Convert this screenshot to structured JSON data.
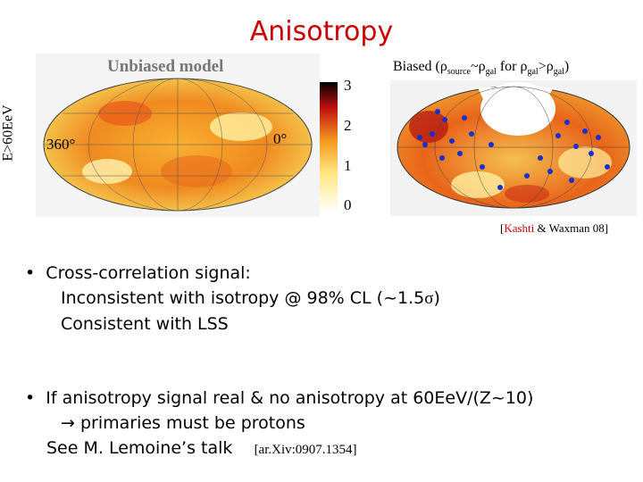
{
  "title": "Anisotropy",
  "left_panel": {
    "title": "Unbiased model",
    "ylabel": "E>60EeV",
    "lon_left": "360°",
    "lon_right": "0°"
  },
  "colorbar": {
    "ticks": [
      "3",
      "2",
      "1",
      "0"
    ]
  },
  "right_panel": {
    "label_prefix": "Biased (",
    "rho": "ρ",
    "sub_source": "source",
    "tilde": "~",
    "sub_gal": "gal",
    "for": " for ",
    "gt": ">",
    "sub_gal2": "gal",
    "close": ")"
  },
  "citation": {
    "open": "[",
    "author1": "Kashti",
    "rest": " & Waxman 08]"
  },
  "bullets": {
    "b1_line1": "Cross-correlation signal:",
    "b1_line2_pre": "Inconsistent with isotropy @ 98% CL (~1.5",
    "b1_line2_sigma": "σ",
    "b1_line2_post": ")",
    "b1_line3": "Consistent with LSS",
    "b2_line1": "If anisotropy signal real & no anisotropy at 60EeV/(Z~10)",
    "b2_line2": " primaries must be protons",
    "b2_line3": "See M. Lemoine’s talk",
    "b2_arxiv": "[ar.Xiv:0907.1354]"
  }
}
